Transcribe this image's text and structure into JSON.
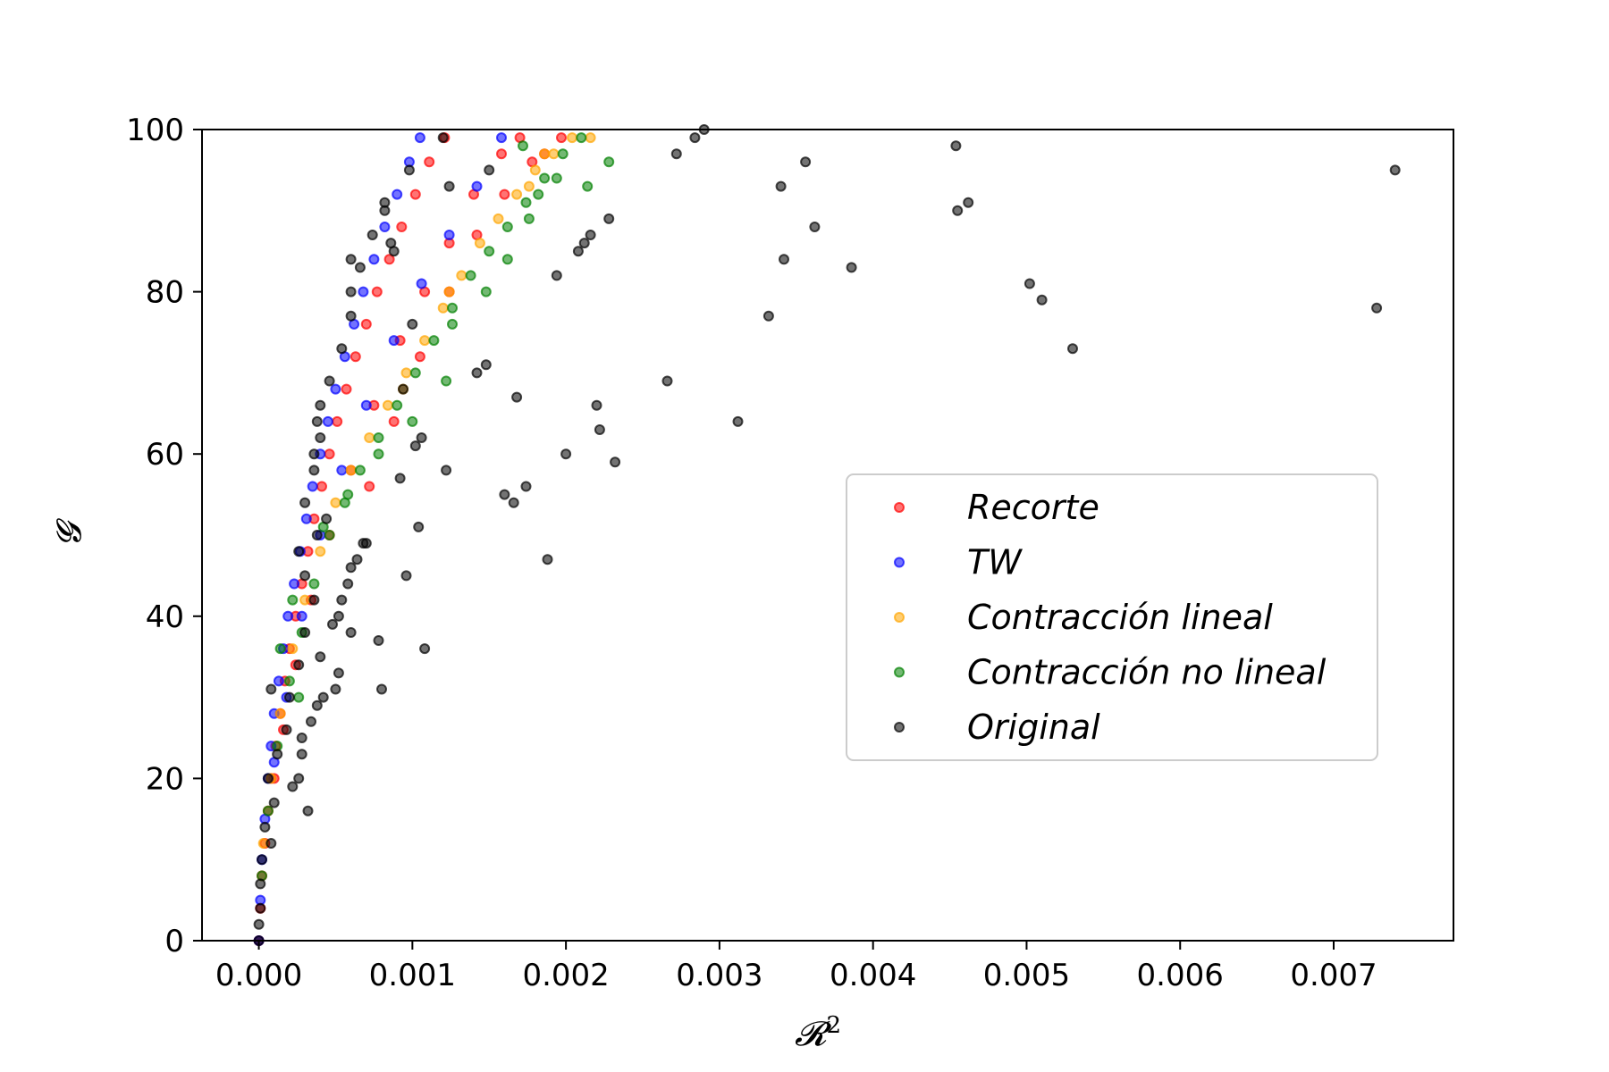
{
  "chart_data": {
    "type": "scatter",
    "title": "",
    "xlabel": "𝓡",
    "xlabel_sup": "2",
    "ylabel": "𝓖",
    "xlim": [
      -0.00037,
      0.00778
    ],
    "ylim": [
      0,
      100
    ],
    "xticks": [
      0.0,
      0.001,
      0.002,
      0.003,
      0.004,
      0.005,
      0.006,
      0.007
    ],
    "xtick_labels": [
      "0.000",
      "0.001",
      "0.002",
      "0.003",
      "0.004",
      "0.005",
      "0.006",
      "0.007"
    ],
    "yticks": [
      0,
      20,
      40,
      60,
      80,
      100
    ],
    "ytick_labels": [
      "0",
      "20",
      "40",
      "60",
      "80",
      "100"
    ],
    "grid": false,
    "legend_position": "center-right",
    "series": [
      {
        "name": "Recorte",
        "color": "#ff0000",
        "points": [
          [
            0.0,
            0
          ],
          [
            1e-05,
            4
          ],
          [
            2e-05,
            8
          ],
          [
            4e-05,
            12
          ],
          [
            6e-05,
            16
          ],
          [
            8e-05,
            20
          ],
          [
            0.00011,
            24
          ],
          [
            0.00014,
            28
          ],
          [
            0.00017,
            32
          ],
          [
            0.0002,
            36
          ],
          [
            0.00024,
            40
          ],
          [
            0.00028,
            44
          ],
          [
            0.00032,
            48
          ],
          [
            0.00036,
            52
          ],
          [
            0.00041,
            56
          ],
          [
            0.00046,
            60
          ],
          [
            0.00051,
            64
          ],
          [
            0.00057,
            68
          ],
          [
            0.00063,
            72
          ],
          [
            0.0007,
            76
          ],
          [
            0.00077,
            80
          ],
          [
            0.00085,
            84
          ],
          [
            0.00093,
            88
          ],
          [
            0.00102,
            92
          ],
          [
            0.00111,
            96
          ],
          [
            0.00121,
            99
          ],
          [
            0.0001,
            20
          ],
          [
            0.00016,
            26
          ],
          [
            0.00024,
            34
          ],
          [
            0.00034,
            42
          ],
          [
            0.00046,
            50
          ],
          [
            0.0006,
            58
          ],
          [
            0.00075,
            66
          ],
          [
            0.00092,
            74
          ],
          [
            0.00108,
            80
          ],
          [
            0.00124,
            86
          ],
          [
            0.0014,
            92
          ],
          [
            0.00158,
            97
          ],
          [
            0.0017,
            99
          ],
          [
            0.00072,
            56
          ],
          [
            0.00088,
            64
          ],
          [
            0.00105,
            72
          ],
          [
            0.00124,
            80
          ],
          [
            0.00142,
            87
          ],
          [
            0.0016,
            92
          ],
          [
            0.00178,
            96
          ],
          [
            0.00197,
            99
          ],
          [
            0.00186,
            97
          ]
        ]
      },
      {
        "name": "TW",
        "color": "#0000ff",
        "points": [
          [
            0.0,
            0
          ],
          [
            1e-05,
            5
          ],
          [
            2e-05,
            10
          ],
          [
            4e-05,
            15
          ],
          [
            6e-05,
            20
          ],
          [
            8e-05,
            24
          ],
          [
            0.0001,
            28
          ],
          [
            0.00013,
            32
          ],
          [
            0.00016,
            36
          ],
          [
            0.00019,
            40
          ],
          [
            0.00023,
            44
          ],
          [
            0.00027,
            48
          ],
          [
            0.00031,
            52
          ],
          [
            0.00035,
            56
          ],
          [
            0.0004,
            60
          ],
          [
            0.00045,
            64
          ],
          [
            0.0005,
            68
          ],
          [
            0.00056,
            72
          ],
          [
            0.00062,
            76
          ],
          [
            0.00068,
            80
          ],
          [
            0.00075,
            84
          ],
          [
            0.00082,
            88
          ],
          [
            0.0009,
            92
          ],
          [
            0.00098,
            96
          ],
          [
            0.00105,
            99
          ],
          [
            0.0001,
            22
          ],
          [
            0.00018,
            30
          ],
          [
            0.00028,
            40
          ],
          [
            0.0004,
            50
          ],
          [
            0.00054,
            58
          ],
          [
            0.0007,
            66
          ],
          [
            0.00088,
            74
          ],
          [
            0.00106,
            81
          ],
          [
            0.00124,
            87
          ],
          [
            0.00142,
            93
          ],
          [
            0.00158,
            99
          ]
        ]
      },
      {
        "name": "Contracción lineal",
        "color": "#ffa500",
        "points": [
          [
            3e-05,
            12
          ],
          [
            8e-05,
            20
          ],
          [
            0.00014,
            28
          ],
          [
            0.00022,
            36
          ],
          [
            0.0003,
            42
          ],
          [
            0.0004,
            48
          ],
          [
            0.0005,
            54
          ],
          [
            0.0006,
            58
          ],
          [
            0.00072,
            62
          ],
          [
            0.00084,
            66
          ],
          [
            0.00096,
            70
          ],
          [
            0.00108,
            74
          ],
          [
            0.0012,
            78
          ],
          [
            0.00132,
            82
          ],
          [
            0.00144,
            86
          ],
          [
            0.00156,
            89
          ],
          [
            0.00168,
            92
          ],
          [
            0.0018,
            95
          ],
          [
            0.00192,
            97
          ],
          [
            0.00204,
            99
          ],
          [
            0.00216,
            99
          ],
          [
            0.00176,
            93
          ],
          [
            0.00186,
            97
          ],
          [
            0.00124,
            80
          ],
          [
            0.00094,
            68
          ]
        ]
      },
      {
        "name": "Contracción no lineal",
        "color": "#008000",
        "points": [
          [
            2e-05,
            8
          ],
          [
            6e-05,
            16
          ],
          [
            0.00012,
            24
          ],
          [
            0.0002,
            32
          ],
          [
            0.00028,
            38
          ],
          [
            0.00036,
            44
          ],
          [
            0.00046,
            50
          ],
          [
            0.00056,
            54
          ],
          [
            0.00066,
            58
          ],
          [
            0.00078,
            62
          ],
          [
            0.0009,
            66
          ],
          [
            0.00102,
            70
          ],
          [
            0.00114,
            74
          ],
          [
            0.00126,
            78
          ],
          [
            0.00138,
            82
          ],
          [
            0.0015,
            85
          ],
          [
            0.00162,
            88
          ],
          [
            0.00174,
            91
          ],
          [
            0.00186,
            94
          ],
          [
            0.00198,
            97
          ],
          [
            0.0021,
            99
          ],
          [
            0.00214,
            93
          ],
          [
            0.00228,
            96
          ],
          [
            0.00176,
            89
          ],
          [
            0.00162,
            84
          ],
          [
            0.00148,
            80
          ],
          [
            0.00126,
            76
          ],
          [
            0.00122,
            69
          ],
          [
            0.001,
            64
          ],
          [
            0.00078,
            60
          ],
          [
            0.00058,
            55
          ],
          [
            0.00042,
            51
          ],
          [
            0.00022,
            42
          ],
          [
            0.00014,
            36
          ],
          [
            0.00026,
            30
          ],
          [
            0.00172,
            98
          ],
          [
            0.00182,
            92
          ],
          [
            0.00194,
            94
          ]
        ]
      },
      {
        "name": "Original",
        "color": "#000000",
        "points": [
          [
            0.0,
            0
          ],
          [
            0.0,
            2
          ],
          [
            1e-05,
            4
          ],
          [
            1e-05,
            7
          ],
          [
            2e-05,
            10
          ],
          [
            4e-05,
            14
          ],
          [
            8e-05,
            12
          ],
          [
            0.0001,
            17
          ],
          [
            6e-05,
            20
          ],
          [
            0.00012,
            23
          ],
          [
            0.00018,
            26
          ],
          [
            0.00028,
            25
          ],
          [
            0.0002,
            30
          ],
          [
            0.00026,
            34
          ],
          [
            0.0003,
            38
          ],
          [
            0.00036,
            42
          ],
          [
            0.0003,
            45
          ],
          [
            0.00026,
            48
          ],
          [
            0.00038,
            50
          ],
          [
            0.00044,
            52
          ],
          [
            0.0003,
            54
          ],
          [
            0.00036,
            58
          ],
          [
            0.00036,
            60
          ],
          [
            0.0004,
            62
          ],
          [
            0.00038,
            64
          ],
          [
            0.0004,
            66
          ],
          [
            0.00046,
            69
          ],
          [
            0.00054,
            73
          ],
          [
            0.0006,
            77
          ],
          [
            0.0006,
            80
          ],
          [
            0.00066,
            83
          ],
          [
            0.0006,
            84
          ],
          [
            0.00074,
            87
          ],
          [
            0.00082,
            90
          ],
          [
            0.00082,
            91
          ],
          [
            0.00088,
            85
          ],
          [
            0.00098,
            95
          ],
          [
            0.00086,
            86
          ],
          [
            0.001,
            76
          ],
          [
            0.00094,
            68
          ],
          [
            0.00102,
            61
          ],
          [
            0.00106,
            62
          ],
          [
            0.00092,
            57
          ],
          [
            0.00122,
            58
          ],
          [
            0.00104,
            51
          ],
          [
            0.00096,
            45
          ],
          [
            0.00064,
            47
          ],
          [
            0.00068,
            49
          ],
          [
            0.00058,
            44
          ],
          [
            0.00054,
            42
          ],
          [
            0.00048,
            39
          ],
          [
            0.00052,
            40
          ],
          [
            0.0006,
            38
          ],
          [
            0.00078,
            37
          ],
          [
            0.00108,
            36
          ],
          [
            0.0004,
            35
          ],
          [
            0.00052,
            33
          ],
          [
            0.00042,
            30
          ],
          [
            0.00038,
            29
          ],
          [
            0.00034,
            27
          ],
          [
            0.00028,
            23
          ],
          [
            0.00022,
            19
          ],
          [
            0.00026,
            20
          ],
          [
            0.00032,
            16
          ],
          [
            8e-05,
            31
          ],
          [
            0.0005,
            31
          ],
          [
            0.0008,
            31
          ],
          [
            0.0006,
            46
          ],
          [
            0.0007,
            49
          ],
          [
            0.0012,
            99
          ],
          [
            0.00124,
            93
          ],
          [
            0.0015,
            95
          ],
          [
            0.00148,
            71
          ],
          [
            0.00142,
            70
          ],
          [
            0.0016,
            55
          ],
          [
            0.00166,
            54
          ],
          [
            0.00174,
            56
          ],
          [
            0.00168,
            67
          ],
          [
            0.00188,
            47
          ],
          [
            0.00194,
            82
          ],
          [
            0.002,
            60
          ],
          [
            0.00208,
            85
          ],
          [
            0.00212,
            86
          ],
          [
            0.00216,
            87
          ],
          [
            0.0022,
            66
          ],
          [
            0.00222,
            63
          ],
          [
            0.00232,
            59
          ],
          [
            0.00228,
            89
          ],
          [
            0.00266,
            69
          ],
          [
            0.00272,
            97
          ],
          [
            0.00284,
            99
          ],
          [
            0.0029,
            100
          ],
          [
            0.00312,
            64
          ],
          [
            0.00332,
            77
          ],
          [
            0.0034,
            93
          ],
          [
            0.00342,
            84
          ],
          [
            0.00356,
            96
          ],
          [
            0.00362,
            88
          ],
          [
            0.00386,
            83
          ],
          [
            0.00454,
            98
          ],
          [
            0.00455,
            90
          ],
          [
            0.00462,
            91
          ],
          [
            0.00502,
            81
          ],
          [
            0.0051,
            79
          ],
          [
            0.0053,
            73
          ],
          [
            0.00728,
            78
          ],
          [
            0.0074,
            95
          ]
        ]
      }
    ]
  }
}
